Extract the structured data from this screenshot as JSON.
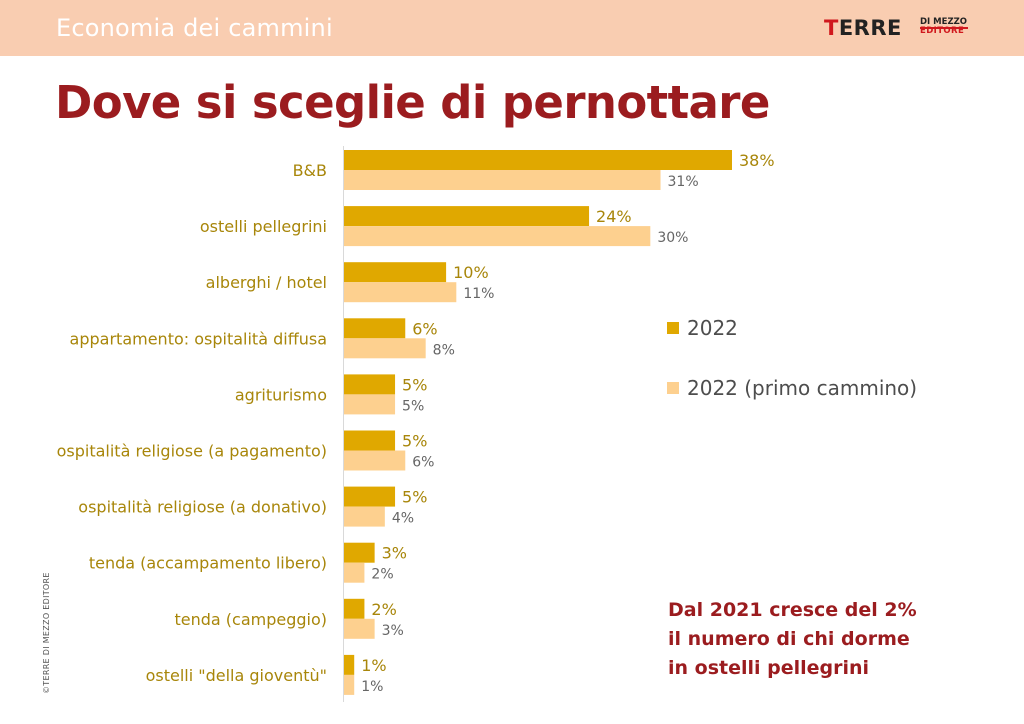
{
  "header": {
    "section_title": "Economia dei cammini",
    "logo": {
      "main_t": "T",
      "main_rest": "ERRE",
      "sub_top": "DI MEZZO",
      "sub_bottom": "EDITORE"
    }
  },
  "page_title": "Dove si sceglie di pernottare",
  "colors": {
    "series_2022": "#e0a800",
    "series_primo": "#fdd08f",
    "title": "#9b1c1f",
    "header_band": "#f9cdb1"
  },
  "chart_data": {
    "type": "bar",
    "orientation": "horizontal",
    "categories": [
      "B&B",
      "ostelli pellegrini",
      "alberghi / hotel",
      "appartamento: ospitalità diffusa",
      "agriturismo",
      "ospitalità religiose (a pagamento)",
      "ospitalità religiose (a donativo)",
      "tenda (accampamento libero)",
      "tenda (campeggio)",
      "ostelli \"della gioventù\""
    ],
    "series": [
      {
        "name": "2022",
        "values": [
          38,
          24,
          10,
          6,
          5,
          5,
          5,
          3,
          2,
          1
        ],
        "labels": [
          "38%",
          "24%",
          "10%",
          "6%",
          "5%",
          "5%",
          "5%",
          "3%",
          "2%",
          "1%"
        ]
      },
      {
        "name": "2022 (primo cammino)",
        "values": [
          31,
          30,
          11,
          8,
          5,
          6,
          4,
          2,
          3,
          1
        ],
        "labels": [
          "31%",
          "30%",
          "11%",
          "8%",
          "5%",
          "6%",
          "4%",
          "2%",
          "3%",
          "1%"
        ]
      }
    ],
    "xlim": [
      0,
      38
    ],
    "legend_position": "right"
  },
  "note": {
    "line1": "Dal 2021 cresce del 2%",
    "line2": "il numero di chi dorme",
    "line3": "in ostelli pellegrini"
  },
  "copyright": "©TERRE DI MEZZO EDITORE"
}
